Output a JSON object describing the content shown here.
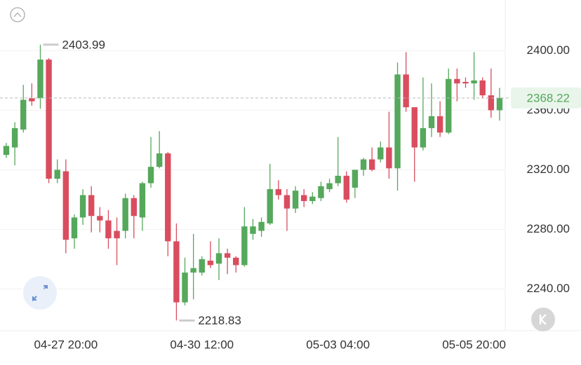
{
  "chart_data": {
    "type": "candlestick",
    "categories": [
      null,
      null,
      null,
      null,
      null,
      null,
      null,
      "04-27 20:00",
      null,
      null,
      null,
      null,
      null,
      null,
      null,
      null,
      null,
      null,
      null,
      null,
      null,
      null,
      null,
      "04-30 12:00",
      null,
      null,
      null,
      null,
      null,
      null,
      null,
      null,
      null,
      null,
      null,
      null,
      null,
      null,
      null,
      "05-03 04:00",
      null,
      null,
      null,
      null,
      null,
      null,
      null,
      null,
      null,
      null,
      null,
      null,
      null,
      null,
      null,
      "05-05 20:00",
      null,
      null,
      null
    ],
    "open": [
      2330,
      2335,
      2347,
      2368,
      2368,
      2394,
      2314,
      2319,
      2274,
      2288,
      2303,
      2289,
      2286,
      2279,
      2279,
      2301,
      2288,
      2311,
      2322,
      2331,
      2272,
      2231,
      2251,
      2251,
      2259,
      2257,
      2264,
      2261,
      2256,
      2277,
      2279,
      2284,
      2307,
      2303,
      2294,
      2303,
      2299,
      2301,
      2307,
      2311,
      2316,
      2308,
      2320,
      2327,
      2327,
      2335,
      2321,
      2384,
      2362,
      2335,
      2348,
      2356,
      2345,
      2381,
      2379,
      2378,
      2380,
      2370,
      2360
    ],
    "high": [
      2338,
      2352,
      2377,
      2378,
      2403.99,
      2395,
      2327,
      2327,
      2290,
      2307,
      2309,
      2295,
      2293,
      2288,
      2304,
      2303,
      2312,
      2342,
      2346,
      2332,
      2284,
      2261,
      2277,
      2262,
      2272,
      2274,
      2267,
      2262,
      2295,
      2287,
      2288,
      2324,
      2313,
      2307,
      2309,
      2307,
      2305,
      2312,
      2314,
      2342,
      2319,
      2320,
      2328,
      2335,
      2339,
      2359,
      2392,
      2399,
      2362,
      2382,
      2378,
      2366,
      2388,
      2388,
      2382,
      2399,
      2382,
      2388,
      2375
    ],
    "low": [
      2328,
      2323,
      2345,
      2363,
      2361,
      2311,
      2311,
      2264,
      2267,
      2283,
      2278,
      2278,
      2267,
      2256,
      2274,
      2274,
      2279,
      2308,
      2321,
      2262,
      2218.83,
      2229,
      2233,
      2249,
      2254,
      2246,
      2250,
      2251,
      2255,
      2273,
      2275,
      2283,
      2300,
      2279,
      2291,
      2295,
      2297,
      2299,
      2305,
      2309,
      2298,
      2301,
      2316,
      2319,
      2325,
      2314,
      2306,
      2359,
      2312,
      2333,
      2342,
      2342,
      2344,
      2366,
      2375,
      2367,
      2368,
      2355,
      2353
    ],
    "close": [
      2336,
      2348,
      2367,
      2366,
      2394,
      2314,
      2320,
      2273,
      2288,
      2303,
      2289,
      2286,
      2274,
      2274,
      2301,
      2289,
      2311,
      2322,
      2331,
      2272,
      2231,
      2251,
      2254,
      2260,
      2256,
      2264,
      2261,
      2256,
      2282,
      2282,
      2285,
      2307,
      2303,
      2294,
      2306,
      2299,
      2302,
      2309,
      2311,
      2316,
      2300,
      2320,
      2327,
      2320,
      2335,
      2321,
      2384,
      2362,
      2335,
      2348,
      2356,
      2345,
      2381,
      2378,
      2378,
      2380,
      2370,
      2360,
      2368.22
    ],
    "up_color": "#55a85c",
    "down_color": "#d94d5f",
    "ylim": [
      2212,
      2434
    ],
    "yticks": [
      {
        "value": 2240,
        "label": "2240.00"
      },
      {
        "value": 2280,
        "label": "2280.00"
      },
      {
        "value": 2320,
        "label": "2320.00"
      },
      {
        "value": 2360,
        "label": "2360.00"
      },
      {
        "value": 2400,
        "label": "2400.00"
      }
    ],
    "grid": true
  }
}
